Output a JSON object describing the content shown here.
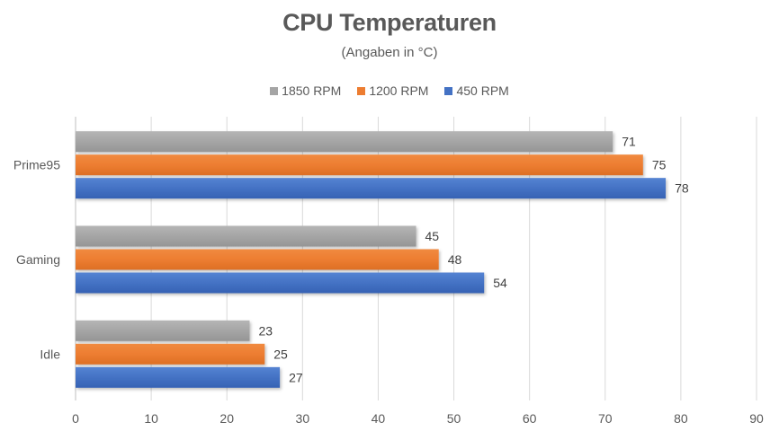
{
  "chart_data": {
    "type": "bar",
    "orientation": "horizontal",
    "title": "CPU Temperaturen",
    "subtitle": "(Angaben in °C)",
    "xlabel": "",
    "ylabel": "",
    "xlim": [
      0,
      90
    ],
    "xticks": [
      0,
      10,
      20,
      30,
      40,
      50,
      60,
      70,
      80,
      90
    ],
    "grid": true,
    "legend_position": "top",
    "categories": [
      "Prime95",
      "Gaming",
      "Idle"
    ],
    "series": [
      {
        "name": "1850 RPM",
        "color": "#A5A5A5",
        "values": [
          71,
          45,
          23
        ]
      },
      {
        "name": "1200 RPM",
        "color": "#ED7D31",
        "values": [
          75,
          48,
          25
        ]
      },
      {
        "name": "450 RPM",
        "color": "#4472C4",
        "values": [
          78,
          54,
          27
        ]
      }
    ],
    "data_labels": true
  }
}
